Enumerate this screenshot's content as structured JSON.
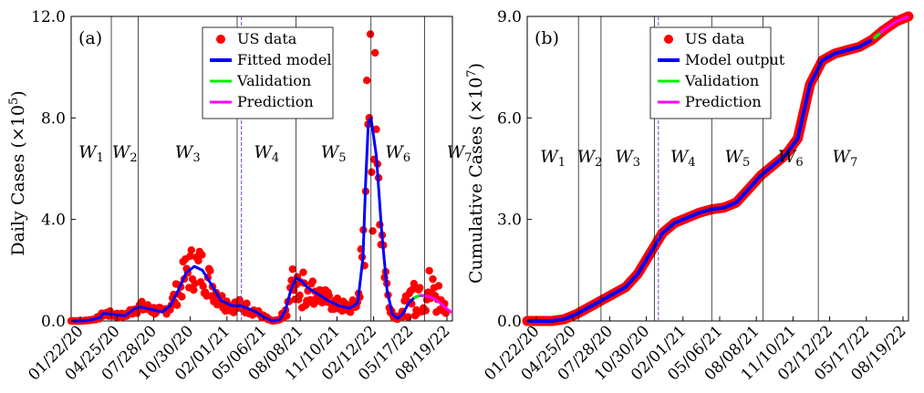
{
  "chart_data": [
    {
      "panel": "(a)",
      "type": "scatter",
      "ylabel": "Daily Cases (×10",
      "ylabel_exp": "5",
      "ylim": [
        0,
        12
      ],
      "yticks": [
        "0.0",
        "4.0",
        "8.0",
        "12.0"
      ],
      "xticks": [
        "01/22/20",
        "04/25/20",
        "07/28/20",
        "10/30/20",
        "02/01/21",
        "05/06/21",
        "08/08/21",
        "11/10/21",
        "02/12/22",
        "05/17/22",
        "08/19/22"
      ],
      "waves": [
        {
          "w": "W",
          "sub": "1"
        },
        {
          "w": "W",
          "sub": "2"
        },
        {
          "w": "W",
          "sub": "3"
        },
        {
          "w": "W",
          "sub": "4"
        },
        {
          "w": "W",
          "sub": "5"
        },
        {
          "w": "W",
          "sub": "6"
        },
        {
          "w": "W",
          "sub": "7"
        }
      ],
      "wave_boundaries_days": [
        0,
        75,
        125,
        310,
        420,
        560,
        660,
        790
      ],
      "legend": [
        "US data",
        "Fitted model",
        "Validation",
        "Prediction"
      ],
      "colors": {
        "data": "#ff0000",
        "model": "#0000ff",
        "validation": "#00ee00",
        "prediction": "#ff00ff"
      },
      "model": {
        "x_days": [
          0,
          20,
          40,
          55,
          60,
          80,
          100,
          120,
          130,
          150,
          170,
          185,
          200,
          215,
          230,
          245,
          260,
          280,
          300,
          315,
          330,
          345,
          360,
          375,
          390,
          400,
          410,
          420,
          432,
          440,
          450,
          465,
          480,
          500,
          520,
          535,
          545,
          550,
          555,
          560,
          570,
          580,
          590,
          600,
          610,
          620,
          630,
          640,
          650,
          660,
          670,
          680,
          690,
          700,
          710
        ],
        "y": [
          0.0,
          0.0,
          0.05,
          0.15,
          0.3,
          0.25,
          0.2,
          0.5,
          0.55,
          0.45,
          0.35,
          0.6,
          1.2,
          1.9,
          2.15,
          2.0,
          1.5,
          0.8,
          0.6,
          0.6,
          0.5,
          0.35,
          0.15,
          0.0,
          0.05,
          0.4,
          1.2,
          1.7,
          1.55,
          1.35,
          1.2,
          1.0,
          0.8,
          0.6,
          0.5,
          0.7,
          2.5,
          5.5,
          7.8,
          8.0,
          6.5,
          3.5,
          1.2,
          0.25,
          0.1,
          0.3,
          0.7,
          0.9,
          1.0,
          1.0,
          0.95,
          0.85,
          0.7,
          0.5,
          0.35
        ]
      },
      "validation_days": [
        640,
        660
      ],
      "prediction_days": [
        650,
        712
      ]
    },
    {
      "panel": "(b)",
      "type": "line",
      "ylabel": "Cumulative Cases (×10",
      "ylabel_exp": "7",
      "ylim": [
        0,
        9
      ],
      "yticks": [
        "0.0",
        "3.0",
        "6.0",
        "9.0"
      ],
      "xticks": [
        "01/22/20",
        "04/25/20",
        "07/28/20",
        "10/30/20",
        "02/01/21",
        "05/06/21",
        "08/08/21",
        "11/10/21",
        "02/12/22",
        "05/17/22",
        "08/19/22"
      ],
      "waves": [
        {
          "w": "W",
          "sub": "1"
        },
        {
          "w": "W",
          "sub": "2"
        },
        {
          "w": "W",
          "sub": "3"
        },
        {
          "w": "W",
          "sub": "4"
        },
        {
          "w": "W",
          "sub": "5"
        },
        {
          "w": "W",
          "sub": "6"
        },
        {
          "w": "W",
          "sub": "7"
        }
      ],
      "wave_boundaries_days": [
        0,
        125,
        180,
        310,
        450,
        575,
        710,
        840
      ],
      "legend": [
        "US data",
        "Model output",
        "Validation",
        "Prediction"
      ],
      "colors": {
        "data": "#ff0000",
        "model": "#0000ff",
        "validation": "#00ee00",
        "prediction": "#ff00ff"
      },
      "model": {
        "x_days": [
          0,
          60,
          90,
          120,
          150,
          180,
          210,
          240,
          270,
          300,
          330,
          360,
          390,
          420,
          450,
          480,
          510,
          540,
          570,
          600,
          630,
          660,
          690,
          720,
          750,
          780,
          810,
          840,
          870,
          900,
          930
        ],
        "y": [
          0.0,
          0.0,
          0.05,
          0.2,
          0.4,
          0.6,
          0.8,
          1.0,
          1.4,
          2.0,
          2.6,
          2.9,
          3.05,
          3.2,
          3.3,
          3.35,
          3.5,
          3.9,
          4.3,
          4.6,
          4.9,
          5.4,
          7.0,
          7.7,
          7.9,
          8.0,
          8.1,
          8.3,
          8.6,
          8.85,
          9.0
        ]
      },
      "validation_days": [
        845,
        870
      ],
      "prediction_days": [
        860,
        930
      ]
    }
  ]
}
